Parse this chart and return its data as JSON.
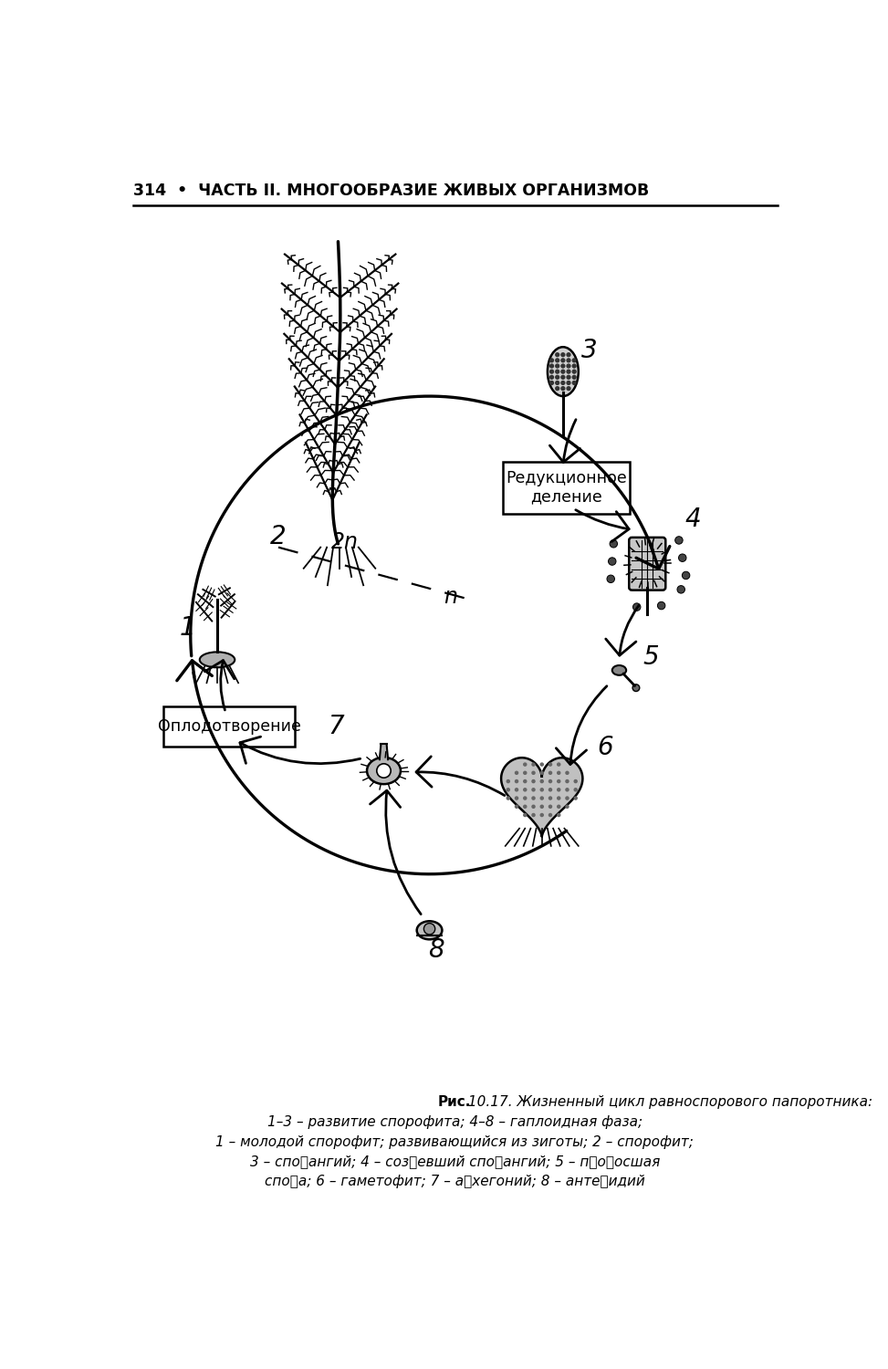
{
  "page_header": "314  •  ЧАСТЬ II. МНОГООБРАЗИЕ ЖИВЫХ ОРГАНИЗМОВ",
  "caption_bold": "Рис. 10.17.",
  "caption_main": "Жизненный цикл равноспорового папоротника:",
  "caption_line2": "1–3 – развитие спорофита; 4–8 – гаплоидная фаза;",
  "caption_line3": "1 – молодой спорофит; развивающийся из зиготы; 2 – спорофит;",
  "caption_line4": "3 – споႈангий; 4 – созႈевший споႈангий; 5 – пႈоႈосшая",
  "caption_line5": "споႈа; 6 – гаметофит; 7 – аႈхегоний; 8 – антеႈидий",
  "box1_text": "Редукционное\nделение",
  "box2_text": "Оплодотворение",
  "label_2n": "2n",
  "label_n": "n",
  "bg_color": "#ffffff",
  "text_color": "#000000"
}
